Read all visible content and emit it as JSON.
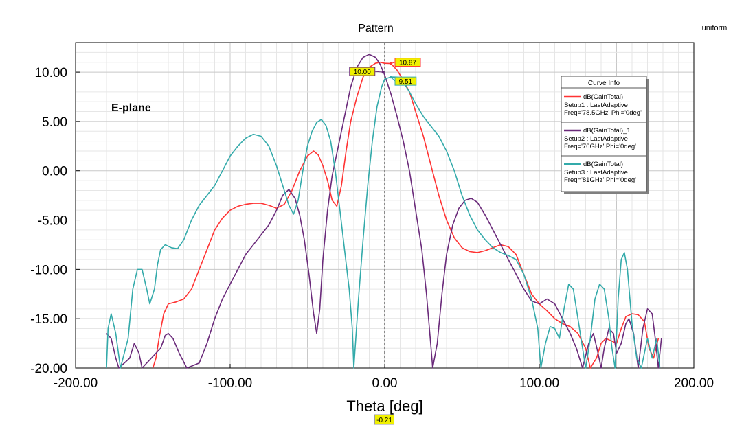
{
  "chart_data": {
    "type": "line",
    "title": "Pattern",
    "top_right_note": "uniform",
    "plot_label": "E-plane",
    "xlabel": "Theta [deg]",
    "ylabel": "",
    "xlim": [
      -200,
      200
    ],
    "ylim": [
      -20,
      13
    ],
    "xticks": [
      -200,
      -100,
      0,
      100,
      200
    ],
    "yticks": [
      -20,
      -15,
      -10,
      -5,
      0,
      5,
      10
    ],
    "grid": true,
    "cursor": {
      "x": -0.21,
      "label": "-0.21"
    },
    "legend": {
      "title": "Curve Info",
      "placement": "top-right"
    },
    "series": [
      {
        "name": "dB(GainTotal)",
        "legend_lines": [
          "Setup1 : LastAdaptive",
          "Freq='78.5GHz' Phi='0deg'"
        ],
        "color": "#ff3333",
        "marker": {
          "x": 4,
          "y": 10.87,
          "label": "10.87"
        },
        "points": [
          [
            -150,
            -20
          ],
          [
            -148,
            -19
          ],
          [
            -146,
            -17
          ],
          [
            -143,
            -14.5
          ],
          [
            -140,
            -13.5
          ],
          [
            -135,
            -13.3
          ],
          [
            -130,
            -13
          ],
          [
            -125,
            -12
          ],
          [
            -120,
            -10
          ],
          [
            -115,
            -8
          ],
          [
            -110,
            -6
          ],
          [
            -105,
            -4.8
          ],
          [
            -100,
            -4
          ],
          [
            -95,
            -3.6
          ],
          [
            -90,
            -3.4
          ],
          [
            -85,
            -3.3
          ],
          [
            -80,
            -3.3
          ],
          [
            -75,
            -3.5
          ],
          [
            -70,
            -3.8
          ],
          [
            -65,
            -3.4
          ],
          [
            -60,
            -2
          ],
          [
            -55,
            0
          ],
          [
            -50,
            1.5
          ],
          [
            -46,
            2
          ],
          [
            -43,
            1.6
          ],
          [
            -40,
            0.5
          ],
          [
            -37,
            -1
          ],
          [
            -34,
            -3
          ],
          [
            -31,
            -3.6
          ],
          [
            -28,
            -1.5
          ],
          [
            -25,
            2
          ],
          [
            -22,
            5
          ],
          [
            -18,
            7.5
          ],
          [
            -14,
            9.5
          ],
          [
            -10,
            10.5
          ],
          [
            -6,
            10.9
          ],
          [
            -3,
            11
          ],
          [
            0,
            10.9
          ],
          [
            4,
            10.87
          ],
          [
            8,
            10.2
          ],
          [
            12,
            9.2
          ],
          [
            16,
            8
          ],
          [
            20,
            6
          ],
          [
            25,
            3.5
          ],
          [
            30,
            0.5
          ],
          [
            35,
            -2.5
          ],
          [
            40,
            -5
          ],
          [
            45,
            -6.8
          ],
          [
            50,
            -7.8
          ],
          [
            55,
            -8.2
          ],
          [
            60,
            -8.3
          ],
          [
            65,
            -8.1
          ],
          [
            70,
            -7.8
          ],
          [
            75,
            -7.5
          ],
          [
            80,
            -7.7
          ],
          [
            85,
            -8.5
          ],
          [
            90,
            -10.5
          ],
          [
            95,
            -12.5
          ],
          [
            100,
            -13.5
          ],
          [
            105,
            -14.2
          ],
          [
            110,
            -15
          ],
          [
            115,
            -15.5
          ],
          [
            120,
            -15.8
          ],
          [
            125,
            -16.5
          ],
          [
            130,
            -18
          ],
          [
            133,
            -20
          ],
          [
            137,
            -19
          ],
          [
            140,
            -17.5
          ],
          [
            143,
            -17
          ],
          [
            146,
            -17.2
          ],
          [
            150,
            -17.5
          ],
          [
            153,
            -16
          ],
          [
            156,
            -14.8
          ],
          [
            160,
            -14.5
          ],
          [
            164,
            -14.6
          ],
          [
            168,
            -15.3
          ],
          [
            171,
            -18
          ],
          [
            174,
            -19
          ],
          [
            177,
            -17
          ]
        ]
      },
      {
        "name": "dB(GainTotal)_1",
        "legend_lines": [
          "Setup2 : LastAdaptive",
          "Freq='76GHz' Phi='0deg'"
        ],
        "color": "#6a2a7a",
        "marker": {
          "x": -1,
          "y": 10,
          "label": "10.00"
        },
        "points": [
          [
            -180,
            -16.5
          ],
          [
            -177,
            -17
          ],
          [
            -174,
            -19
          ],
          [
            -172,
            -20
          ],
          [
            -165,
            -19
          ],
          [
            -162,
            -17.5
          ],
          [
            -159,
            -18.5
          ],
          [
            -157,
            -20
          ],
          [
            -145,
            -18
          ],
          [
            -142,
            -16.7
          ],
          [
            -140,
            -16.5
          ],
          [
            -137,
            -17
          ],
          [
            -133,
            -18.5
          ],
          [
            -128,
            -20
          ],
          [
            -120,
            -19.5
          ],
          [
            -115,
            -17.5
          ],
          [
            -110,
            -15
          ],
          [
            -105,
            -13
          ],
          [
            -100,
            -11.5
          ],
          [
            -95,
            -10
          ],
          [
            -90,
            -8.5
          ],
          [
            -85,
            -7.5
          ],
          [
            -80,
            -6.5
          ],
          [
            -75,
            -5.5
          ],
          [
            -70,
            -4
          ],
          [
            -66,
            -2.5
          ],
          [
            -62,
            -1.9
          ],
          [
            -58,
            -2.8
          ],
          [
            -55,
            -4.5
          ],
          [
            -52,
            -7
          ],
          [
            -49,
            -10.5
          ],
          [
            -46,
            -14.5
          ],
          [
            -44,
            -16.5
          ],
          [
            -42,
            -14
          ],
          [
            -40,
            -9
          ],
          [
            -37,
            -4
          ],
          [
            -34,
            -0.5
          ],
          [
            -30,
            2.5
          ],
          [
            -26,
            5.5
          ],
          [
            -22,
            8.5
          ],
          [
            -18,
            10.5
          ],
          [
            -14,
            11.5
          ],
          [
            -10,
            11.8
          ],
          [
            -6,
            11.5
          ],
          [
            -3,
            10.8
          ],
          [
            0,
            9.7
          ],
          [
            4,
            7.8
          ],
          [
            8,
            5.5
          ],
          [
            12,
            3
          ],
          [
            16,
            0
          ],
          [
            20,
            -4
          ],
          [
            24,
            -8
          ],
          [
            27,
            -12.5
          ],
          [
            30,
            -18
          ],
          [
            31,
            -20
          ],
          [
            34,
            -17.5
          ],
          [
            37,
            -12.5
          ],
          [
            40,
            -8.5
          ],
          [
            44,
            -5.5
          ],
          [
            48,
            -3.8
          ],
          [
            52,
            -3
          ],
          [
            56,
            -2.8
          ],
          [
            60,
            -3.2
          ],
          [
            65,
            -4.5
          ],
          [
            70,
            -6
          ],
          [
            75,
            -7.5
          ],
          [
            80,
            -9
          ],
          [
            85,
            -10.5
          ],
          [
            90,
            -12
          ],
          [
            95,
            -13.2
          ],
          [
            100,
            -13.5
          ],
          [
            105,
            -13
          ],
          [
            110,
            -13.5
          ],
          [
            115,
            -15
          ],
          [
            120,
            -16.5
          ],
          [
            124,
            -18
          ],
          [
            128,
            -20
          ],
          [
            132,
            -17.5
          ],
          [
            135,
            -16.5
          ],
          [
            138,
            -18.5
          ],
          [
            140,
            -20
          ],
          [
            142,
            -18
          ],
          [
            145,
            -16
          ],
          [
            148,
            -16.5
          ],
          [
            150,
            -18.5
          ],
          [
            153,
            -17.5
          ],
          [
            156,
            -15.5
          ],
          [
            158,
            -15
          ],
          [
            161,
            -16.5
          ],
          [
            164,
            -20
          ],
          [
            167,
            -16
          ],
          [
            170,
            -14
          ],
          [
            173,
            -14.5
          ],
          [
            175,
            -17
          ],
          [
            177,
            -20
          ],
          [
            179,
            -17
          ]
        ]
      },
      {
        "name": "dB(GainTotal)",
        "legend_lines": [
          "Setup3 : LastAdaptive",
          "Freq='81GHz' Phi='0deg'"
        ],
        "color": "#33aaaa",
        "marker": {
          "x": 4,
          "y": 9.51,
          "label": "9.51"
        },
        "points": [
          [
            -180,
            -20
          ],
          [
            -179,
            -16
          ],
          [
            -177,
            -14.5
          ],
          [
            -174,
            -16.5
          ],
          [
            -171,
            -20
          ],
          [
            -166,
            -17
          ],
          [
            -163,
            -12
          ],
          [
            -160,
            -10
          ],
          [
            -157,
            -10
          ],
          [
            -154,
            -12
          ],
          [
            -152,
            -13.5
          ],
          [
            -149,
            -12
          ],
          [
            -147,
            -9.5
          ],
          [
            -145,
            -8
          ],
          [
            -142,
            -7.5
          ],
          [
            -138,
            -7.8
          ],
          [
            -134,
            -7.9
          ],
          [
            -130,
            -7
          ],
          [
            -125,
            -5
          ],
          [
            -120,
            -3.5
          ],
          [
            -115,
            -2.5
          ],
          [
            -110,
            -1.5
          ],
          [
            -105,
            0
          ],
          [
            -100,
            1.5
          ],
          [
            -95,
            2.5
          ],
          [
            -90,
            3.3
          ],
          [
            -85,
            3.7
          ],
          [
            -80,
            3.5
          ],
          [
            -75,
            2.5
          ],
          [
            -70,
            0.5
          ],
          [
            -65,
            -2
          ],
          [
            -62,
            -3.5
          ],
          [
            -59,
            -4.4
          ],
          [
            -56,
            -3
          ],
          [
            -53,
            0
          ],
          [
            -50,
            2.5
          ],
          [
            -47,
            4
          ],
          [
            -44,
            4.9
          ],
          [
            -41,
            5.2
          ],
          [
            -38,
            4.6
          ],
          [
            -35,
            3
          ],
          [
            -32,
            0
          ],
          [
            -29,
            -4
          ],
          [
            -26,
            -8
          ],
          [
            -23,
            -12
          ],
          [
            -21,
            -16
          ],
          [
            -20,
            -20
          ],
          [
            -17,
            -13
          ],
          [
            -14,
            -7
          ],
          [
            -11,
            -1.5
          ],
          [
            -8,
            3
          ],
          [
            -5,
            6.5
          ],
          [
            -2,
            8.5
          ],
          [
            0,
            9.3
          ],
          [
            4,
            9.51
          ],
          [
            8,
            9.5
          ],
          [
            12,
            9
          ],
          [
            16,
            8
          ],
          [
            20,
            6.8
          ],
          [
            25,
            5.5
          ],
          [
            30,
            4.5
          ],
          [
            35,
            3.5
          ],
          [
            40,
            2
          ],
          [
            45,
            0
          ],
          [
            50,
            -2.5
          ],
          [
            55,
            -4.5
          ],
          [
            60,
            -6
          ],
          [
            65,
            -7
          ],
          [
            70,
            -7.8
          ],
          [
            75,
            -8.3
          ],
          [
            80,
            -8.6
          ],
          [
            85,
            -9
          ],
          [
            90,
            -10.5
          ],
          [
            95,
            -13
          ],
          [
            99,
            -16
          ],
          [
            101,
            -20
          ],
          [
            104,
            -17.5
          ],
          [
            107,
            -15.8
          ],
          [
            110,
            -16
          ],
          [
            113,
            -17
          ],
          [
            116,
            -14
          ],
          [
            119,
            -11.5
          ],
          [
            122,
            -12
          ],
          [
            125,
            -15
          ],
          [
            128,
            -18
          ],
          [
            130,
            -20
          ],
          [
            133,
            -17
          ],
          [
            136,
            -13
          ],
          [
            139,
            -11.5
          ],
          [
            142,
            -12
          ],
          [
            145,
            -15
          ],
          [
            147,
            -18
          ],
          [
            149,
            -20
          ],
          [
            151,
            -13
          ],
          [
            153,
            -9
          ],
          [
            155,
            -8.3
          ],
          [
            157,
            -10
          ],
          [
            160,
            -15.5
          ],
          [
            163,
            -19
          ],
          [
            166,
            -20
          ],
          [
            170,
            -17
          ],
          [
            173,
            -19
          ],
          [
            176,
            -17
          ],
          [
            178,
            -20
          ]
        ]
      }
    ]
  }
}
